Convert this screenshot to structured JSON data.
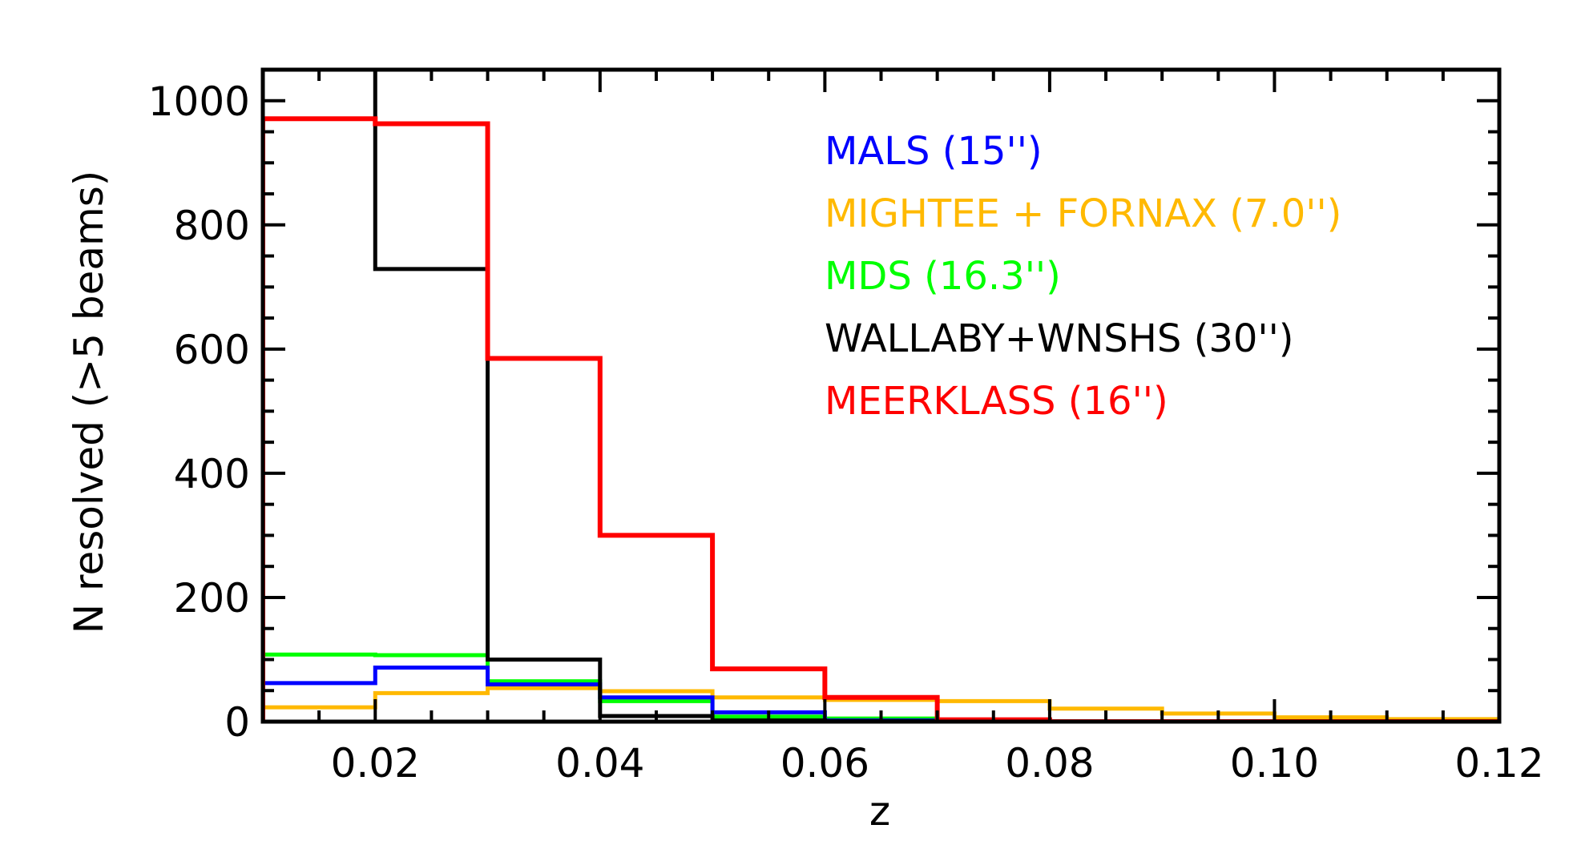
{
  "chart_data": {
    "type": "histogram-step",
    "title": "",
    "xlabel": "z",
    "ylabel": "N resolved (>5 beams)",
    "xlim": [
      0.01,
      0.12
    ],
    "ylim": [
      0,
      1050
    ],
    "x_ticks": [
      0.02,
      0.04,
      0.06,
      0.08,
      0.1,
      0.12
    ],
    "x_tick_labels": [
      "0.02",
      "0.04",
      "0.06",
      "0.08",
      "0.10",
      "0.12"
    ],
    "y_ticks": [
      0,
      200,
      400,
      600,
      800,
      1000
    ],
    "y_tick_labels": [
      "0",
      "200",
      "400",
      "600",
      "800",
      "1000"
    ],
    "bin_edges": [
      0.01,
      0.02,
      0.03,
      0.04,
      0.05,
      0.06,
      0.07,
      0.08,
      0.09,
      0.1,
      0.11,
      0.12
    ],
    "legend_position": "top-right",
    "series": [
      {
        "name": "MALS (15'')",
        "color": "#0000ff",
        "values": [
          62,
          87,
          60,
          39,
          15,
          2,
          0,
          0,
          0,
          0,
          0
        ]
      },
      {
        "name": "MIGHTEE + FORNAX (7.0'')",
        "color": "#ffb900",
        "values": [
          23,
          46,
          54,
          49,
          39,
          35,
          33,
          21,
          13,
          7,
          4
        ]
      },
      {
        "name": "MDS (16.3'')",
        "color": "#00ff00",
        "values": [
          108,
          107,
          65,
          33,
          8,
          5,
          0,
          0,
          0,
          0,
          0
        ]
      },
      {
        "name": "WALLABY+WNSHS (30'')",
        "color": "#000000",
        "values": [
          1100,
          729,
          100,
          9,
          2,
          1,
          0,
          0,
          0,
          0,
          0
        ]
      },
      {
        "name": "MEERKLASS (16'')",
        "color": "#ff0000",
        "values": [
          971,
          963,
          585,
          300,
          85,
          39,
          3,
          0,
          0,
          0,
          0
        ]
      }
    ]
  }
}
